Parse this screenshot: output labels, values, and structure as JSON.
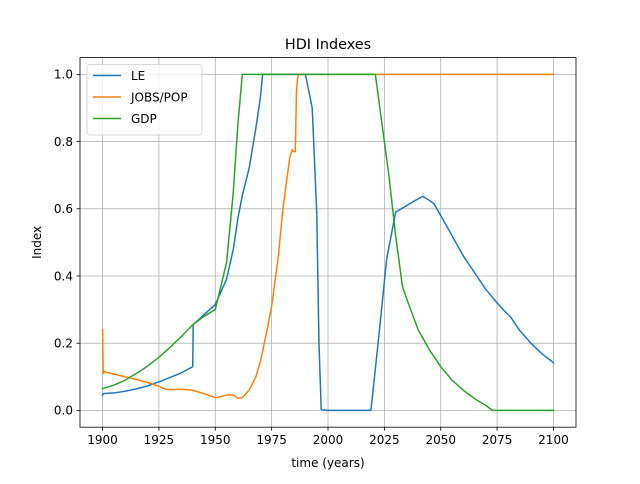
{
  "chart_data": {
    "type": "line",
    "title": "HDI Indexes",
    "xlabel": "time (years)",
    "ylabel": "Index",
    "xlim": [
      1890,
      2110
    ],
    "ylim": [
      -0.05,
      1.05
    ],
    "x_ticks": [
      1900,
      1925,
      1950,
      1975,
      2000,
      2025,
      2050,
      2075,
      2100
    ],
    "x_tick_labels": [
      "1900",
      "1925",
      "1950",
      "1975",
      "2000",
      "2025",
      "2050",
      "2075",
      "2100"
    ],
    "y_ticks": [
      0.0,
      0.2,
      0.4,
      0.6,
      0.8,
      1.0
    ],
    "y_tick_labels": [
      "0.0",
      "0.2",
      "0.4",
      "0.6",
      "0.8",
      "1.0"
    ],
    "grid": true,
    "legend_position": "top-left",
    "series": [
      {
        "name": "LE",
        "color": "#1f77b4",
        "x": [
          1900,
          1900.3,
          1905,
          1910,
          1915,
          1920,
          1925,
          1930,
          1935,
          1940,
          1940.2,
          1945,
          1950,
          1955,
          1958,
          1960,
          1962,
          1965,
          1968,
          1970,
          1971,
          1975,
          1980,
          1985,
          1988,
          1990,
          1993,
          1995,
          1996,
          1997,
          2000,
          2005,
          2010,
          2015,
          2018,
          2019,
          2020,
          2023,
          2026,
          2030,
          2035,
          2040,
          2042,
          2045,
          2047,
          2050,
          2055,
          2060,
          2065,
          2070,
          2075,
          2078,
          2081,
          2085,
          2090,
          2095,
          2100
        ],
        "y": [
          0.045,
          0.05,
          0.052,
          0.057,
          0.064,
          0.073,
          0.085,
          0.098,
          0.112,
          0.13,
          0.255,
          0.285,
          0.315,
          0.39,
          0.48,
          0.57,
          0.64,
          0.72,
          0.84,
          0.93,
          1.0,
          1.0,
          1.0,
          1.0,
          1.0,
          1.0,
          0.9,
          0.59,
          0.2,
          0.002,
          0.0,
          0.0,
          0.0,
          0.0,
          0.0,
          0.0,
          0.06,
          0.25,
          0.45,
          0.59,
          0.61,
          0.63,
          0.637,
          0.625,
          0.615,
          0.58,
          0.52,
          0.46,
          0.41,
          0.36,
          0.32,
          0.298,
          0.278,
          0.238,
          0.2,
          0.168,
          0.142
        ]
      },
      {
        "name": "JOBS/POP",
        "color": "#ff7f0e",
        "x": [
          1900,
          1900.3,
          1901,
          1905,
          1910,
          1915,
          1920,
          1925,
          1928,
          1930,
          1935,
          1940,
          1945,
          1948,
          1950,
          1952,
          1955,
          1958,
          1960,
          1962,
          1965,
          1968,
          1970,
          1973,
          1975,
          1978,
          1980,
          1982,
          1983,
          1984,
          1985,
          1985.5,
          1986,
          1986.5,
          1987,
          2000,
          2025,
          2050,
          2075,
          2100
        ],
        "y": [
          0.24,
          0.11,
          0.115,
          0.108,
          0.1,
          0.092,
          0.083,
          0.072,
          0.063,
          0.062,
          0.063,
          0.06,
          0.05,
          0.043,
          0.038,
          0.04,
          0.046,
          0.046,
          0.036,
          0.038,
          0.06,
          0.1,
          0.145,
          0.24,
          0.31,
          0.46,
          0.6,
          0.7,
          0.75,
          0.775,
          0.77,
          0.77,
          0.95,
          0.99,
          1.0,
          1.0,
          1.0,
          1.0,
          1.0,
          1.0
        ]
      },
      {
        "name": "GDP",
        "color": "#2ca02c",
        "x": [
          1900,
          1905,
          1910,
          1915,
          1920,
          1925,
          1930,
          1935,
          1940,
          1945,
          1950,
          1955,
          1958,
          1960,
          1962,
          1970,
          1980,
          1990,
          2000,
          2010,
          2020,
          2021,
          2023,
          2025,
          2027,
          2030,
          2033,
          2035,
          2040,
          2045,
          2050,
          2055,
          2060,
          2065,
          2070,
          2072,
          2073,
          2075,
          2080,
          2090,
          2100
        ],
        "y": [
          0.065,
          0.075,
          0.09,
          0.11,
          0.132,
          0.158,
          0.188,
          0.22,
          0.255,
          0.28,
          0.3,
          0.44,
          0.65,
          0.85,
          1.0,
          1.0,
          1.0,
          1.0,
          1.0,
          1.0,
          1.0,
          1.0,
          0.9,
          0.8,
          0.7,
          0.52,
          0.37,
          0.33,
          0.24,
          0.18,
          0.13,
          0.09,
          0.06,
          0.035,
          0.015,
          0.005,
          0.0,
          0.0,
          0.0,
          0.0,
          0.0
        ]
      }
    ]
  }
}
